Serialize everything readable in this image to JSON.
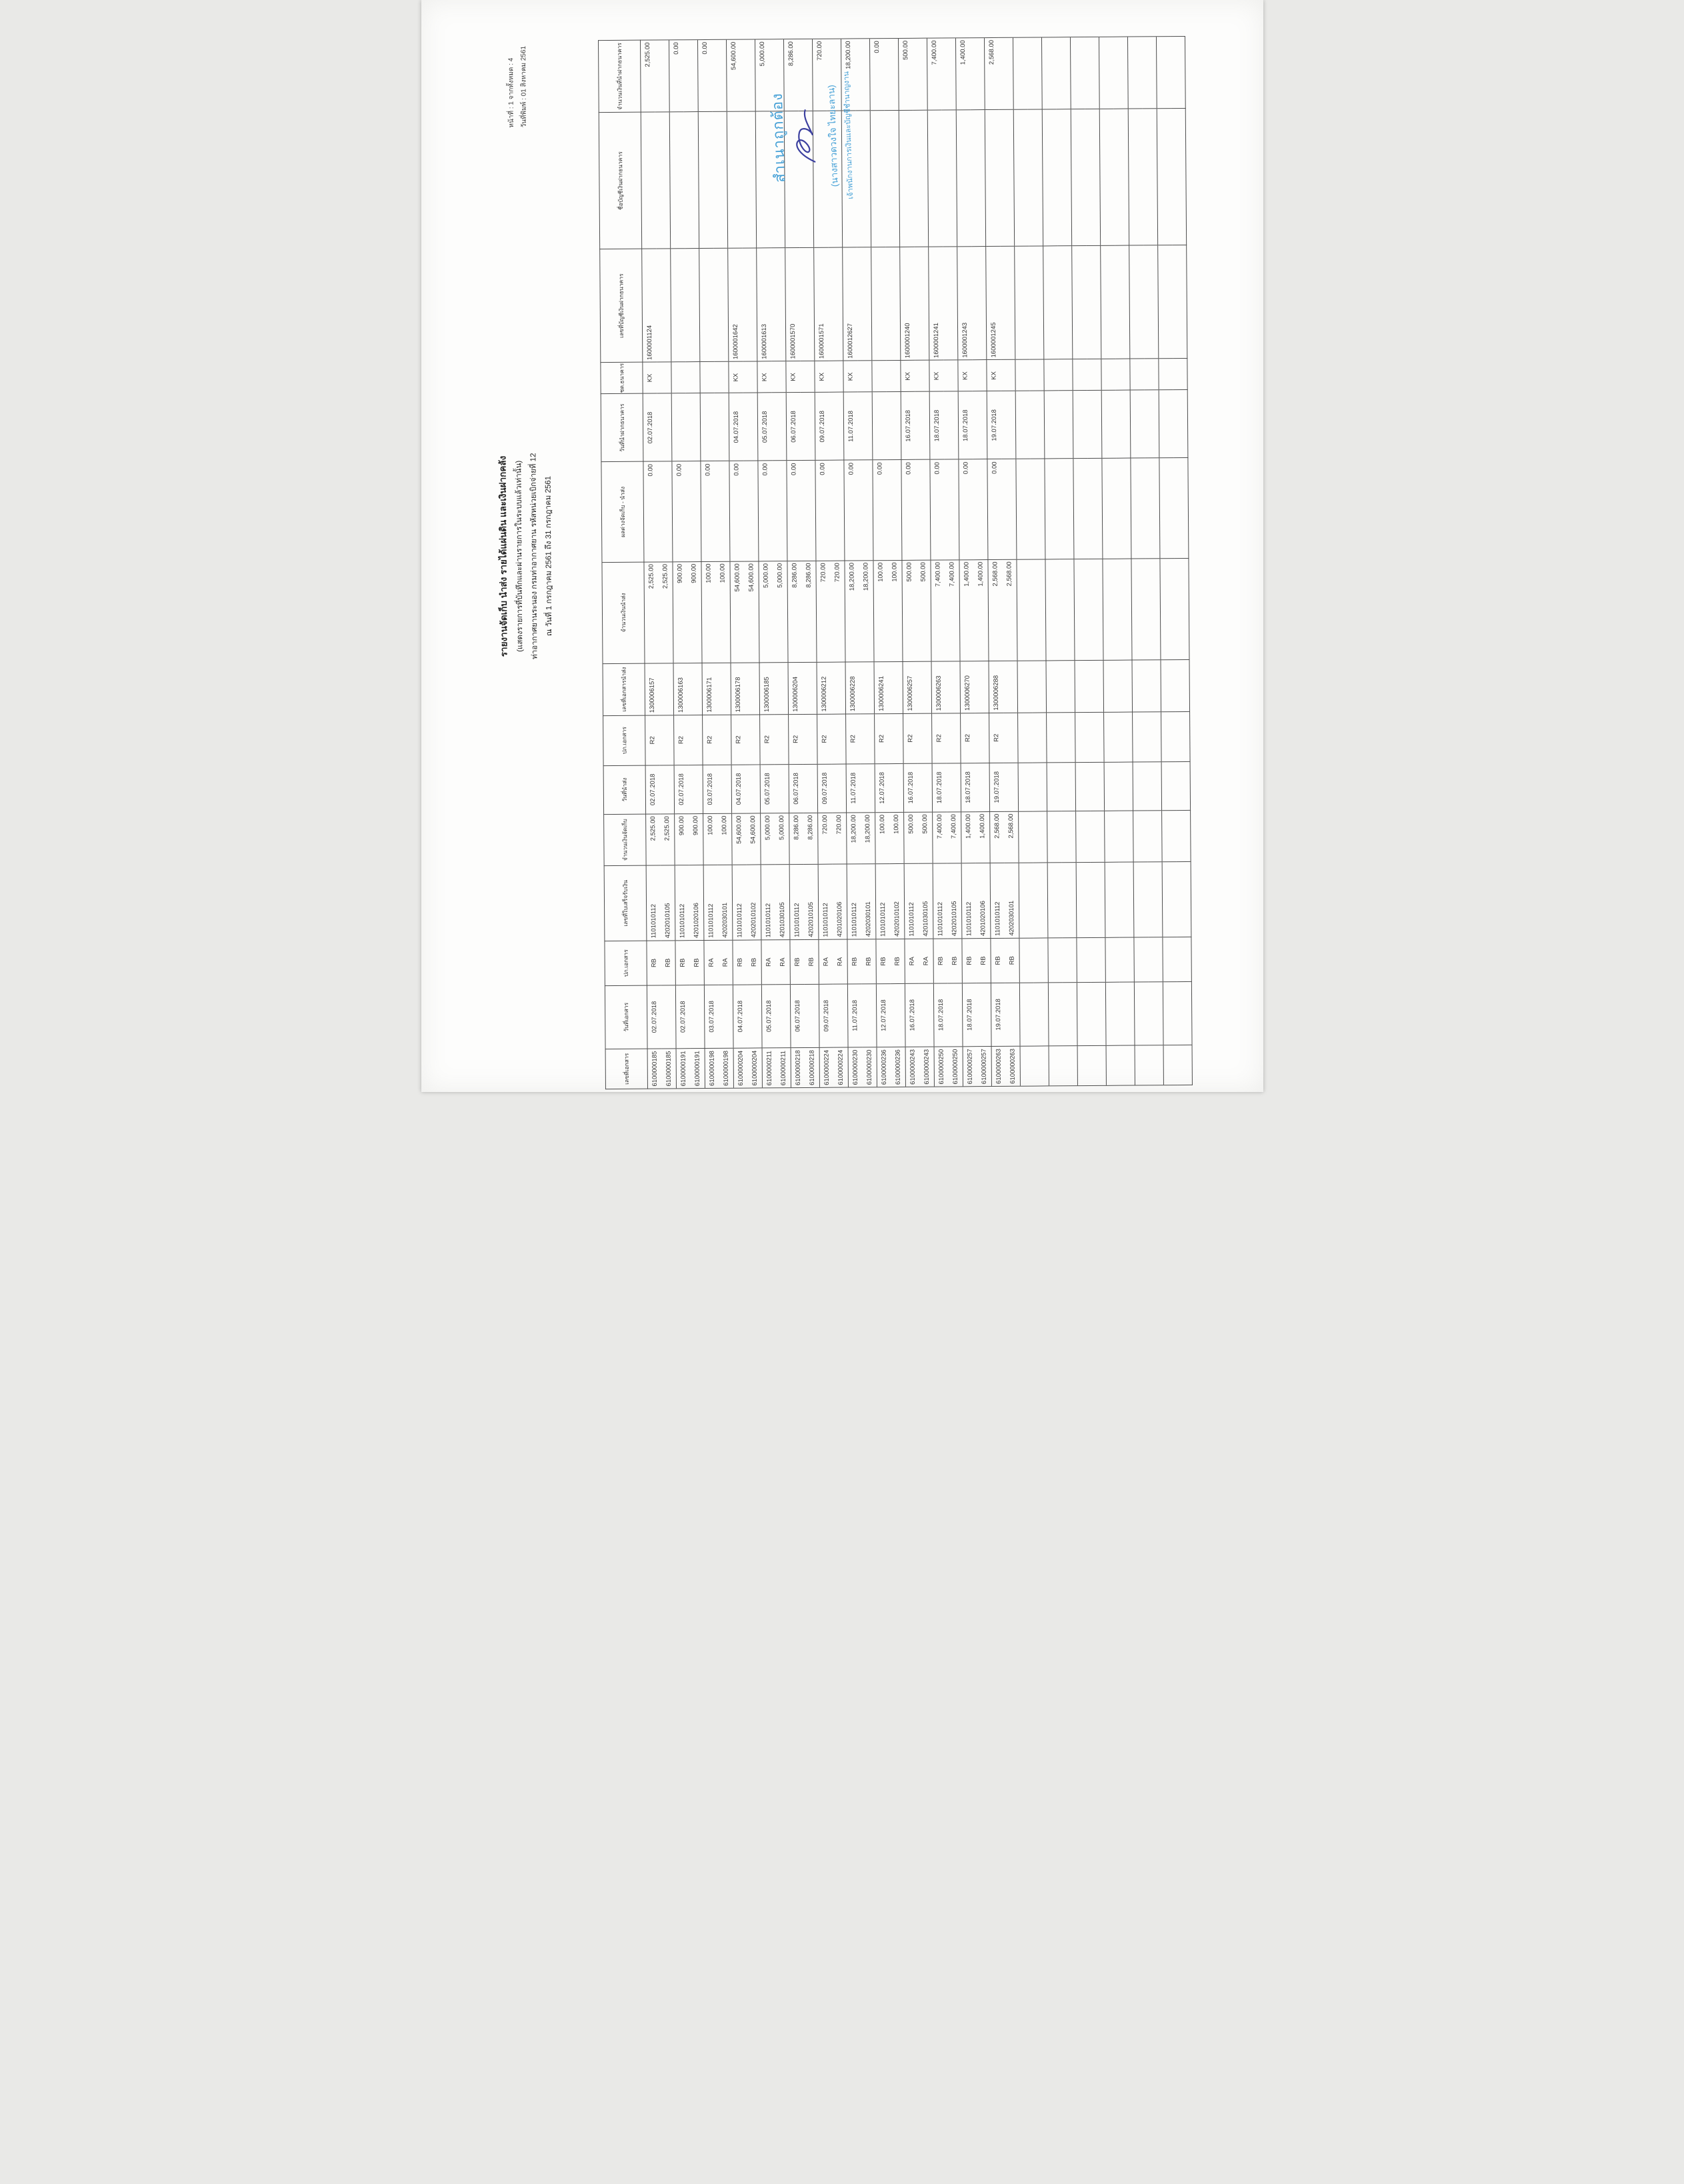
{
  "page_header": {
    "page_label": "หน้าที่ : 1 จากทั้งหมด : 4",
    "print_date_label": "วันที่พิมพ์ : 01 สิงหาคม 2561"
  },
  "title": {
    "line1": "รายงานจัดเก็บ นำส่ง รายได้แผ่นดิน และเงินฝากคลัง",
    "line2": "(แสดงรายการที่บันทึกและผ่านรายการในระบบแล้วเท่านั้น)",
    "line3": "ท่าอากาศยานระนอง กรมท่าอากาศยาน รหัสหน่วยเบิกจ่ายที่ 12",
    "line4": "ณ วันที่ 1 กรกฎาคม 2561 ถึง 31 กรกฎาคม 2561"
  },
  "stamp": {
    "certify": "สำเนาถูกต้อง",
    "name": "(นางสาวดวงใจ ไทยะลาน)",
    "position": "เจ้าพนักงานการเงินและบัญชีชำนาญงาน",
    "accent_color": "#45a0d6",
    "ink_color": "#3b3f9f"
  },
  "table": {
    "headers": [
      "เลขที่เอกสาร",
      "วันที่เอกสาร",
      "ปภ.เอกสาร",
      "เลขที่ใบเสร็จรับเงิน",
      "จำนวนเงินจัดเก็บ",
      "วันที่นำส่ง",
      "ปภ.เอกสาร",
      "เลขที่เอกสารนำส่ง",
      "จำนวนเงินนำส่ง",
      "ผลต่างจัดเก็บ - นำส่ง",
      "วันที่นำฝากธนาคาร",
      "ชด.ธนาคาร",
      "เลขที่บัญชีเงินฝากธนาคาร",
      "ชื่อบัญชีเงินฝากธนาคาร",
      "จำนวนเงินที่นำฝากธนาคาร"
    ],
    "trailing_blank_lines": 12,
    "rows": [
      [
        "6100000185",
        "02.07.2018",
        "RB",
        "1101010112",
        "2,525.00",
        "02.07.2018",
        "R2",
        "1300006157",
        "2,525.00",
        "0.00",
        "02.07.2018",
        "KX",
        "1600001124",
        "",
        "2,525.00"
      ],
      [
        "6100000185",
        "",
        "RB",
        "4202010105",
        "2,525.00",
        "",
        "",
        "",
        "2,525.00",
        "",
        "",
        "",
        "",
        "",
        ""
      ],
      [
        "6100000191",
        "02.07.2018",
        "RB",
        "1101010112",
        "900.00",
        "02.07.2018",
        "R2",
        "1300006163",
        "900.00",
        "0.00",
        "",
        "",
        "",
        "",
        "0.00"
      ],
      [
        "6100000191",
        "",
        "RB",
        "4201020106",
        "900.00",
        "",
        "",
        "",
        "900.00",
        "",
        "",
        "",
        "",
        "",
        ""
      ],
      [
        "6100000198",
        "03.07.2018",
        "RA",
        "1101010112",
        "100.00",
        "03.07.2018",
        "R2",
        "1300006171",
        "100.00",
        "0.00",
        "",
        "",
        "",
        "",
        "0.00"
      ],
      [
        "6100000198",
        "",
        "RA",
        "4202030101",
        "100.00",
        "",
        "",
        "",
        "100.00",
        "",
        "",
        "",
        "",
        "",
        ""
      ],
      [
        "6100000204",
        "04.07.2018",
        "RB",
        "1101010112",
        "54,600.00",
        "04.07.2018",
        "R2",
        "1300006178",
        "54,600.00",
        "0.00",
        "04.07.2018",
        "KX",
        "1600001642",
        "",
        "54,600.00"
      ],
      [
        "6100000204",
        "",
        "RB",
        "4202010102",
        "54,600.00",
        "",
        "",
        "",
        "54,600.00",
        "",
        "",
        "",
        "",
        "",
        ""
      ],
      [
        "6100000211",
        "05.07.2018",
        "RA",
        "1101010112",
        "5,000.00",
        "05.07.2018",
        "R2",
        "1300006185",
        "5,000.00",
        "0.00",
        "05.07.2018",
        "KX",
        "1600001613",
        "",
        "5,000.00"
      ],
      [
        "6100000211",
        "",
        "RA",
        "4201030105",
        "5,000.00",
        "",
        "",
        "",
        "5,000.00",
        "",
        "",
        "",
        "",
        "",
        ""
      ],
      [
        "6100000218",
        "06.07.2018",
        "RB",
        "1101010112",
        "8,286.00",
        "06.07.2018",
        "R2",
        "1300006204",
        "8,286.00",
        "0.00",
        "06.07.2018",
        "KX",
        "1600001570",
        "",
        "8,286.00"
      ],
      [
        "6100000218",
        "",
        "RB",
        "4202010105",
        "8,286.00",
        "",
        "",
        "",
        "8,286.00",
        "",
        "",
        "",
        "",
        "",
        ""
      ],
      [
        "6100000224",
        "09.07.2018",
        "RA",
        "1101010112",
        "720.00",
        "09.07.2018",
        "R2",
        "1300006212",
        "720.00",
        "0.00",
        "09.07.2018",
        "KX",
        "1600001571",
        "",
        "720.00"
      ],
      [
        "6100000224",
        "",
        "RA",
        "4201020106",
        "720.00",
        "",
        "",
        "",
        "720.00",
        "",
        "",
        "",
        "",
        "",
        ""
      ],
      [
        "6100000230",
        "11.07.2018",
        "RB",
        "1101010112",
        "18,200.00",
        "11.07.2018",
        "R2",
        "1300006228",
        "18,200.00",
        "0.00",
        "11.07.2018",
        "KX",
        "1600012627",
        "",
        "18,200.00"
      ],
      [
        "6100000230",
        "",
        "RB",
        "4202030101",
        "18,200.00",
        "",
        "",
        "",
        "18,200.00",
        "",
        "",
        "",
        "",
        "",
        ""
      ],
      [
        "6100000236",
        "12.07.2018",
        "RB",
        "1101010112",
        "100.00",
        "12.07.2018",
        "R2",
        "1300006241",
        "100.00",
        "0.00",
        "",
        "",
        "",
        "",
        "0.00"
      ],
      [
        "6100000236",
        "",
        "RB",
        "4202010102",
        "100.00",
        "",
        "",
        "",
        "100.00",
        "",
        "",
        "",
        "",
        "",
        ""
      ],
      [
        "6100000243",
        "16.07.2018",
        "RA",
        "1101010112",
        "500.00",
        "16.07.2018",
        "R2",
        "1300006257",
        "500.00",
        "0.00",
        "16.07.2018",
        "KX",
        "1600001240",
        "",
        "500.00"
      ],
      [
        "6100000243",
        "",
        "RA",
        "4201030105",
        "500.00",
        "",
        "",
        "",
        "500.00",
        "",
        "",
        "",
        "",
        "",
        ""
      ],
      [
        "6100000250",
        "18.07.2018",
        "RB",
        "1101010112",
        "7,400.00",
        "18.07.2018",
        "R2",
        "1300006263",
        "7,400.00",
        "0.00",
        "18.07.2018",
        "KX",
        "1600001241",
        "",
        "7,400.00"
      ],
      [
        "6100000250",
        "",
        "RB",
        "4202010105",
        "7,400.00",
        "",
        "",
        "",
        "7,400.00",
        "",
        "",
        "",
        "",
        "",
        ""
      ],
      [
        "6100000257",
        "18.07.2018",
        "RB",
        "1101010112",
        "1,400.00",
        "18.07.2018",
        "R2",
        "1300006270",
        "1,400.00",
        "0.00",
        "18.07.2018",
        "KX",
        "1600001243",
        "",
        "1,400.00"
      ],
      [
        "6100000257",
        "",
        "RB",
        "4201020106",
        "1,400.00",
        "",
        "",
        "",
        "1,400.00",
        "",
        "",
        "",
        "",
        "",
        ""
      ],
      [
        "6100000263",
        "19.07.2018",
        "RB",
        "1101010112",
        "2,568.00",
        "19.07.2018",
        "R2",
        "1300006288",
        "2,568.00",
        "0.00",
        "19.07.2018",
        "KX",
        "1600001245",
        "",
        "2,568.00"
      ],
      [
        "6100000263",
        "",
        "RB",
        "4202030101",
        "2,568.00",
        "",
        "",
        "",
        "2,568.00",
        "",
        "",
        "",
        "",
        "",
        ""
      ]
    ]
  }
}
